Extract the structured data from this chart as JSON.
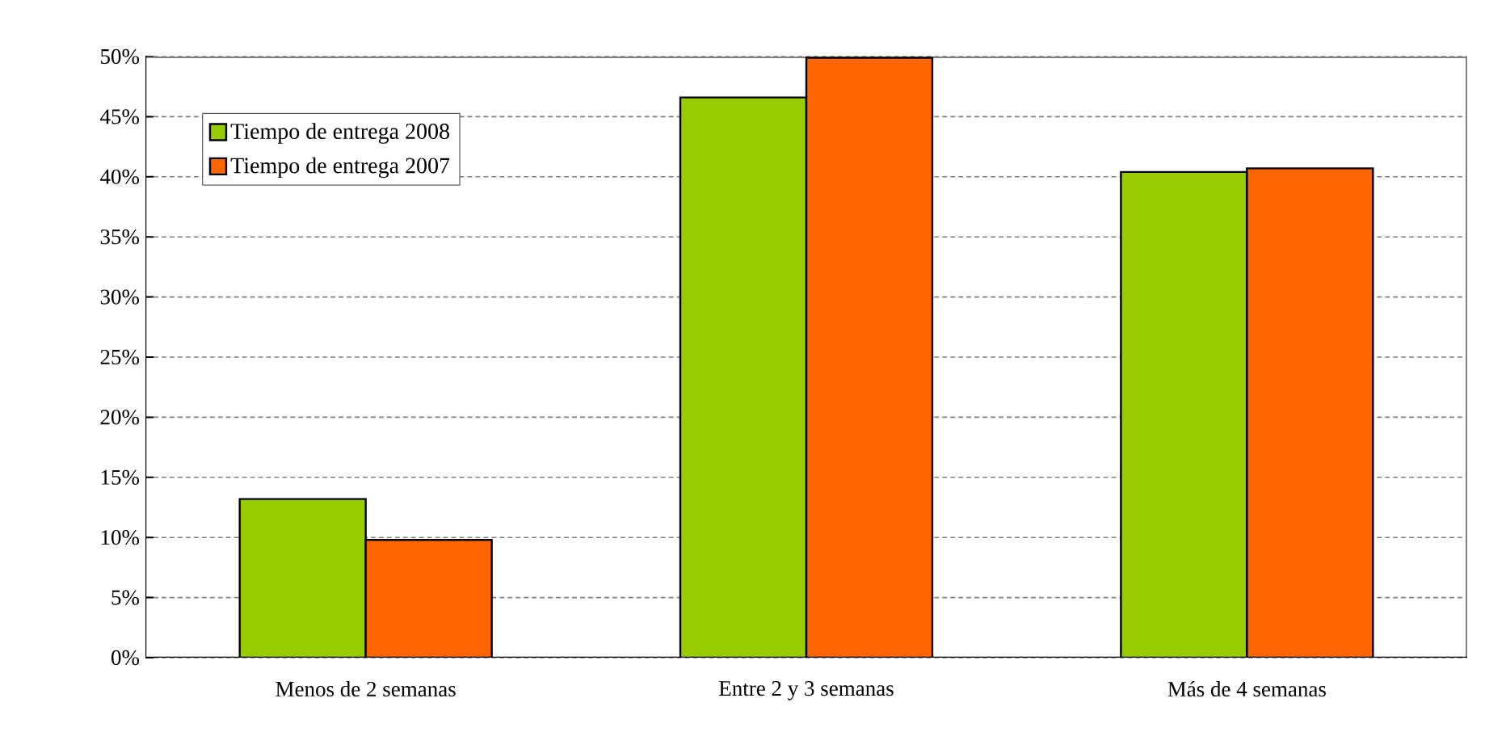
{
  "chart_data": {
    "type": "bar",
    "categories": [
      "Menos de 2 semanas",
      "Entre 2 y 3 semanas",
      "Más de 4 semanas"
    ],
    "series": [
      {
        "name": "Tiempo de entrega 2008",
        "color": "#99cc00",
        "values": [
          13.2,
          46.6,
          40.4
        ]
      },
      {
        "name": "Tiempo de entrega 2007",
        "color": "#ff6600",
        "values": [
          9.8,
          49.9,
          40.7
        ]
      }
    ],
    "ylim": [
      0,
      50
    ],
    "yticks": [
      {
        "value": 0,
        "label": "0%"
      },
      {
        "value": 5,
        "label": "5%"
      },
      {
        "value": 10,
        "label": "10%"
      },
      {
        "value": 15,
        "label": "15%"
      },
      {
        "value": 20,
        "label": "20%"
      },
      {
        "value": 25,
        "label": "25%"
      },
      {
        "value": 30,
        "label": "30%"
      },
      {
        "value": 35,
        "label": "35%"
      },
      {
        "value": 40,
        "label": "40%"
      },
      {
        "value": 45,
        "label": "45%"
      },
      {
        "value": 50,
        "label": "50%"
      }
    ],
    "grid": "y",
    "legend": "top left"
  }
}
